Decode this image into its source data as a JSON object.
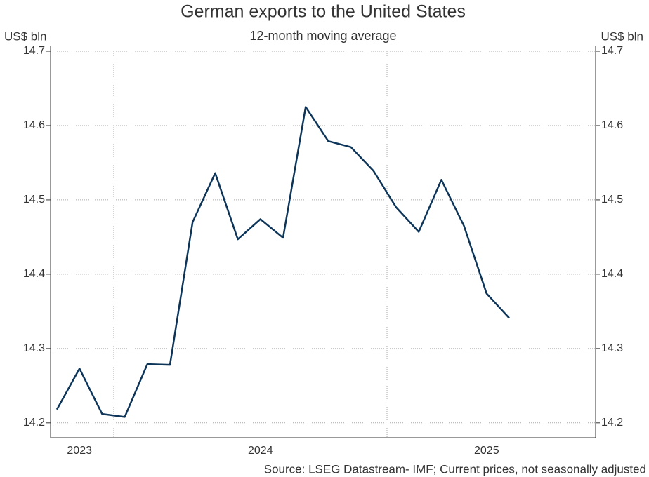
{
  "chart_data": {
    "type": "line",
    "title": "German exports to the United States",
    "subtitle": "12-month moving average",
    "ylabel": "US$ bln",
    "y2label": "US$ bln",
    "source": "Source: LSEG Datastream- IMF; Current prices, not seasonally adjusted",
    "categories": [
      null,
      "2023",
      null,
      null,
      null,
      null,
      null,
      null,
      null,
      "2024",
      null,
      null,
      null,
      null,
      null,
      null,
      null,
      null,
      null,
      "2025",
      null
    ],
    "series": [
      {
        "name": "German exports to the United States",
        "color": "#0d3559",
        "values": [
          14.218,
          14.273,
          14.212,
          14.208,
          14.279,
          14.278,
          14.47,
          14.536,
          14.447,
          14.474,
          14.449,
          14.625,
          14.579,
          14.571,
          14.539,
          14.49,
          14.457,
          14.527,
          14.465,
          14.374,
          14.341
        ]
      }
    ],
    "ylim": [
      14.18,
      14.7
    ],
    "yticks": [
      14.2,
      14.3,
      14.4,
      14.5,
      14.6,
      14.7
    ],
    "grid": true
  }
}
